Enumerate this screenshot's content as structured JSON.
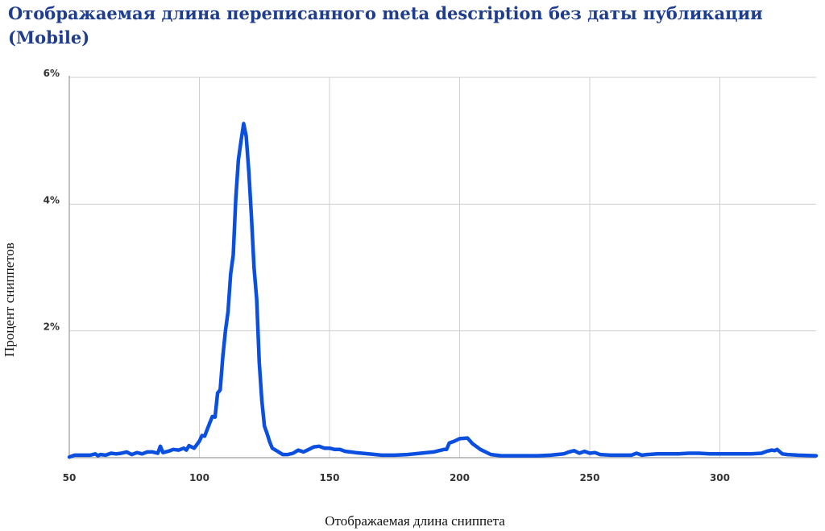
{
  "chart_data": {
    "type": "line",
    "title": "Отображаемая длина переписанного meta description без даты публикации (Mobile)",
    "xlabel": "Отображаемая длина сниппета",
    "ylabel": "Процент сниппетов",
    "xlim": [
      50,
      337
    ],
    "ylim": [
      0,
      6
    ],
    "x_ticks": [
      50,
      100,
      150,
      200,
      250,
      300
    ],
    "x_tick_labels": [
      "50",
      "100",
      "150",
      "200",
      "250",
      "300"
    ],
    "y_ticks": [
      2,
      4,
      6
    ],
    "y_tick_labels": [
      "2%",
      "4%",
      "6%"
    ],
    "grid": true,
    "legend": "none",
    "series_color": "#0a4fe0",
    "series": [
      {
        "x": [
          50,
          52,
          54,
          56,
          58,
          60,
          61,
          62,
          64,
          66,
          68,
          70,
          72,
          74,
          76,
          78,
          80,
          82,
          84,
          85,
          86,
          88,
          90,
          92,
          94,
          95,
          96,
          98,
          100,
          101,
          102,
          104,
          105,
          106,
          107,
          108,
          109,
          110,
          111,
          112,
          113,
          114,
          115,
          116,
          117,
          118,
          119,
          120,
          121,
          122,
          123,
          124,
          125,
          126,
          127,
          128,
          130,
          132,
          134,
          136,
          138,
          140,
          142,
          144,
          146,
          148,
          150,
          152,
          154,
          156,
          158,
          160,
          165,
          170,
          175,
          180,
          185,
          190,
          192,
          194,
          195,
          196,
          198,
          200,
          203,
          205,
          208,
          212,
          216,
          220,
          225,
          230,
          235,
          240,
          242,
          244,
          246,
          248,
          250,
          252,
          254,
          258,
          262,
          266,
          268,
          270,
          272,
          276,
          280,
          284,
          288,
          292,
          296,
          300,
          304,
          308,
          312,
          316,
          318,
          320,
          321,
          322,
          324,
          326,
          330,
          337
        ],
        "y": [
          0.01,
          0.04,
          0.04,
          0.04,
          0.04,
          0.06,
          0.03,
          0.05,
          0.04,
          0.07,
          0.06,
          0.07,
          0.09,
          0.05,
          0.08,
          0.06,
          0.09,
          0.09,
          0.07,
          0.18,
          0.08,
          0.1,
          0.13,
          0.12,
          0.15,
          0.12,
          0.19,
          0.15,
          0.26,
          0.35,
          0.34,
          0.55,
          0.65,
          0.64,
          1.02,
          1.07,
          1.6,
          2.0,
          2.3,
          2.9,
          3.2,
          4.1,
          4.7,
          5.0,
          5.27,
          5.07,
          4.5,
          3.8,
          3.0,
          2.5,
          1.5,
          0.9,
          0.5,
          0.38,
          0.25,
          0.15,
          0.1,
          0.05,
          0.05,
          0.07,
          0.12,
          0.09,
          0.13,
          0.17,
          0.18,
          0.15,
          0.15,
          0.13,
          0.13,
          0.1,
          0.09,
          0.08,
          0.06,
          0.04,
          0.04,
          0.05,
          0.07,
          0.09,
          0.11,
          0.13,
          0.13,
          0.23,
          0.26,
          0.3,
          0.31,
          0.22,
          0.13,
          0.05,
          0.03,
          0.03,
          0.03,
          0.03,
          0.04,
          0.06,
          0.09,
          0.11,
          0.07,
          0.1,
          0.07,
          0.08,
          0.05,
          0.04,
          0.04,
          0.04,
          0.07,
          0.04,
          0.05,
          0.06,
          0.06,
          0.06,
          0.07,
          0.07,
          0.06,
          0.06,
          0.06,
          0.06,
          0.06,
          0.07,
          0.1,
          0.12,
          0.11,
          0.13,
          0.06,
          0.05,
          0.04,
          0.03
        ]
      }
    ]
  }
}
